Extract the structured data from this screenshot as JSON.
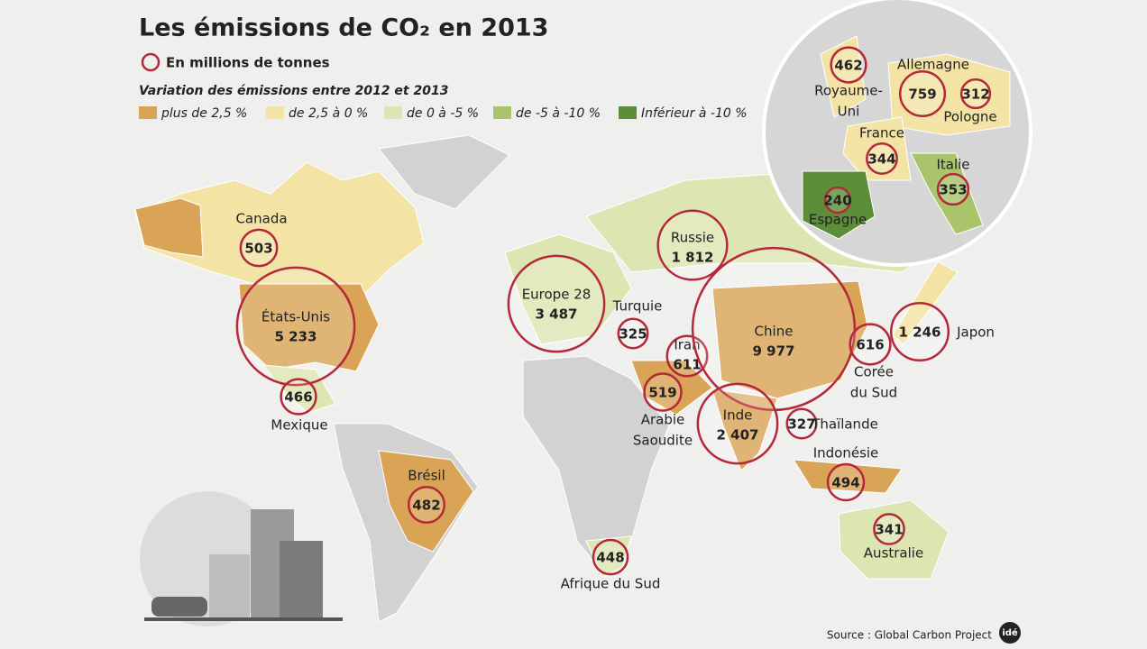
{
  "title": "Les émissions de CO₂ en 2013",
  "bubble_legend": "En millions de tonnes",
  "variation_title": "Variation des émissions entre 2012 et 2013",
  "variation_legend": [
    {
      "label": "plus de 2,5 %",
      "color": "#d9a456"
    },
    {
      "label": "de 2,5 à 0 %",
      "color": "#f3e3a4"
    },
    {
      "label": "de 0 à -5 %",
      "color": "#dde6b3"
    },
    {
      "label": "de -5 à -10 %",
      "color": "#a9c46a"
    },
    {
      "label": "Inférieur à -10 %",
      "color": "#5c8e3a"
    }
  ],
  "countries": [
    {
      "name": [
        "Canada"
      ],
      "value": 503,
      "label": "503"
    },
    {
      "name": [
        "États-Unis"
      ],
      "value": 5233,
      "label": "5 233"
    },
    {
      "name": [
        "Mexique"
      ],
      "value": 466,
      "label": "466"
    },
    {
      "name": [
        "Brésil"
      ],
      "value": 482,
      "label": "482"
    },
    {
      "name": [
        "Afrique du Sud"
      ],
      "value": 448,
      "label": "448"
    },
    {
      "name": [
        "Europe 28"
      ],
      "value": 3487,
      "label": "3 487"
    },
    {
      "name": [
        "Turquie"
      ],
      "value": 325,
      "label": "325"
    },
    {
      "name": [
        "Russie"
      ],
      "value": 1812,
      "label": "1 812"
    },
    {
      "name": [
        "Iran"
      ],
      "value": 611,
      "label": "611"
    },
    {
      "name": [
        "Arabie",
        "Saoudite"
      ],
      "value": 519,
      "label": "519"
    },
    {
      "name": [
        "Chine"
      ],
      "value": 9977,
      "label": "9 977"
    },
    {
      "name": [
        "Inde"
      ],
      "value": 2407,
      "label": "2 407"
    },
    {
      "name": [
        "Corée",
        "du Sud"
      ],
      "value": 616,
      "label": "616"
    },
    {
      "name": [
        "Japon"
      ],
      "value": 1246,
      "label": "1 246"
    },
    {
      "name": [
        "Thaïlande"
      ],
      "value": 327,
      "label": "327"
    },
    {
      "name": [
        "Indonésie"
      ],
      "value": 494,
      "label": "494"
    },
    {
      "name": [
        "Australie"
      ],
      "value": 341,
      "label": "341"
    },
    {
      "name": [
        "Royaume-",
        "Uni"
      ],
      "value": 462,
      "label": "462"
    },
    {
      "name": [
        "Allemagne"
      ],
      "value": 759,
      "label": "759"
    },
    {
      "name": [
        "Pologne"
      ],
      "value": 312,
      "label": "312"
    },
    {
      "name": [
        "France"
      ],
      "value": 344,
      "label": "344"
    },
    {
      "name": [
        "Italie"
      ],
      "value": 353,
      "label": "353"
    },
    {
      "name": [
        "Espagne"
      ],
      "value": 240,
      "label": "240"
    }
  ],
  "source": "Source : Global Carbon Project",
  "logo": "idé"
}
